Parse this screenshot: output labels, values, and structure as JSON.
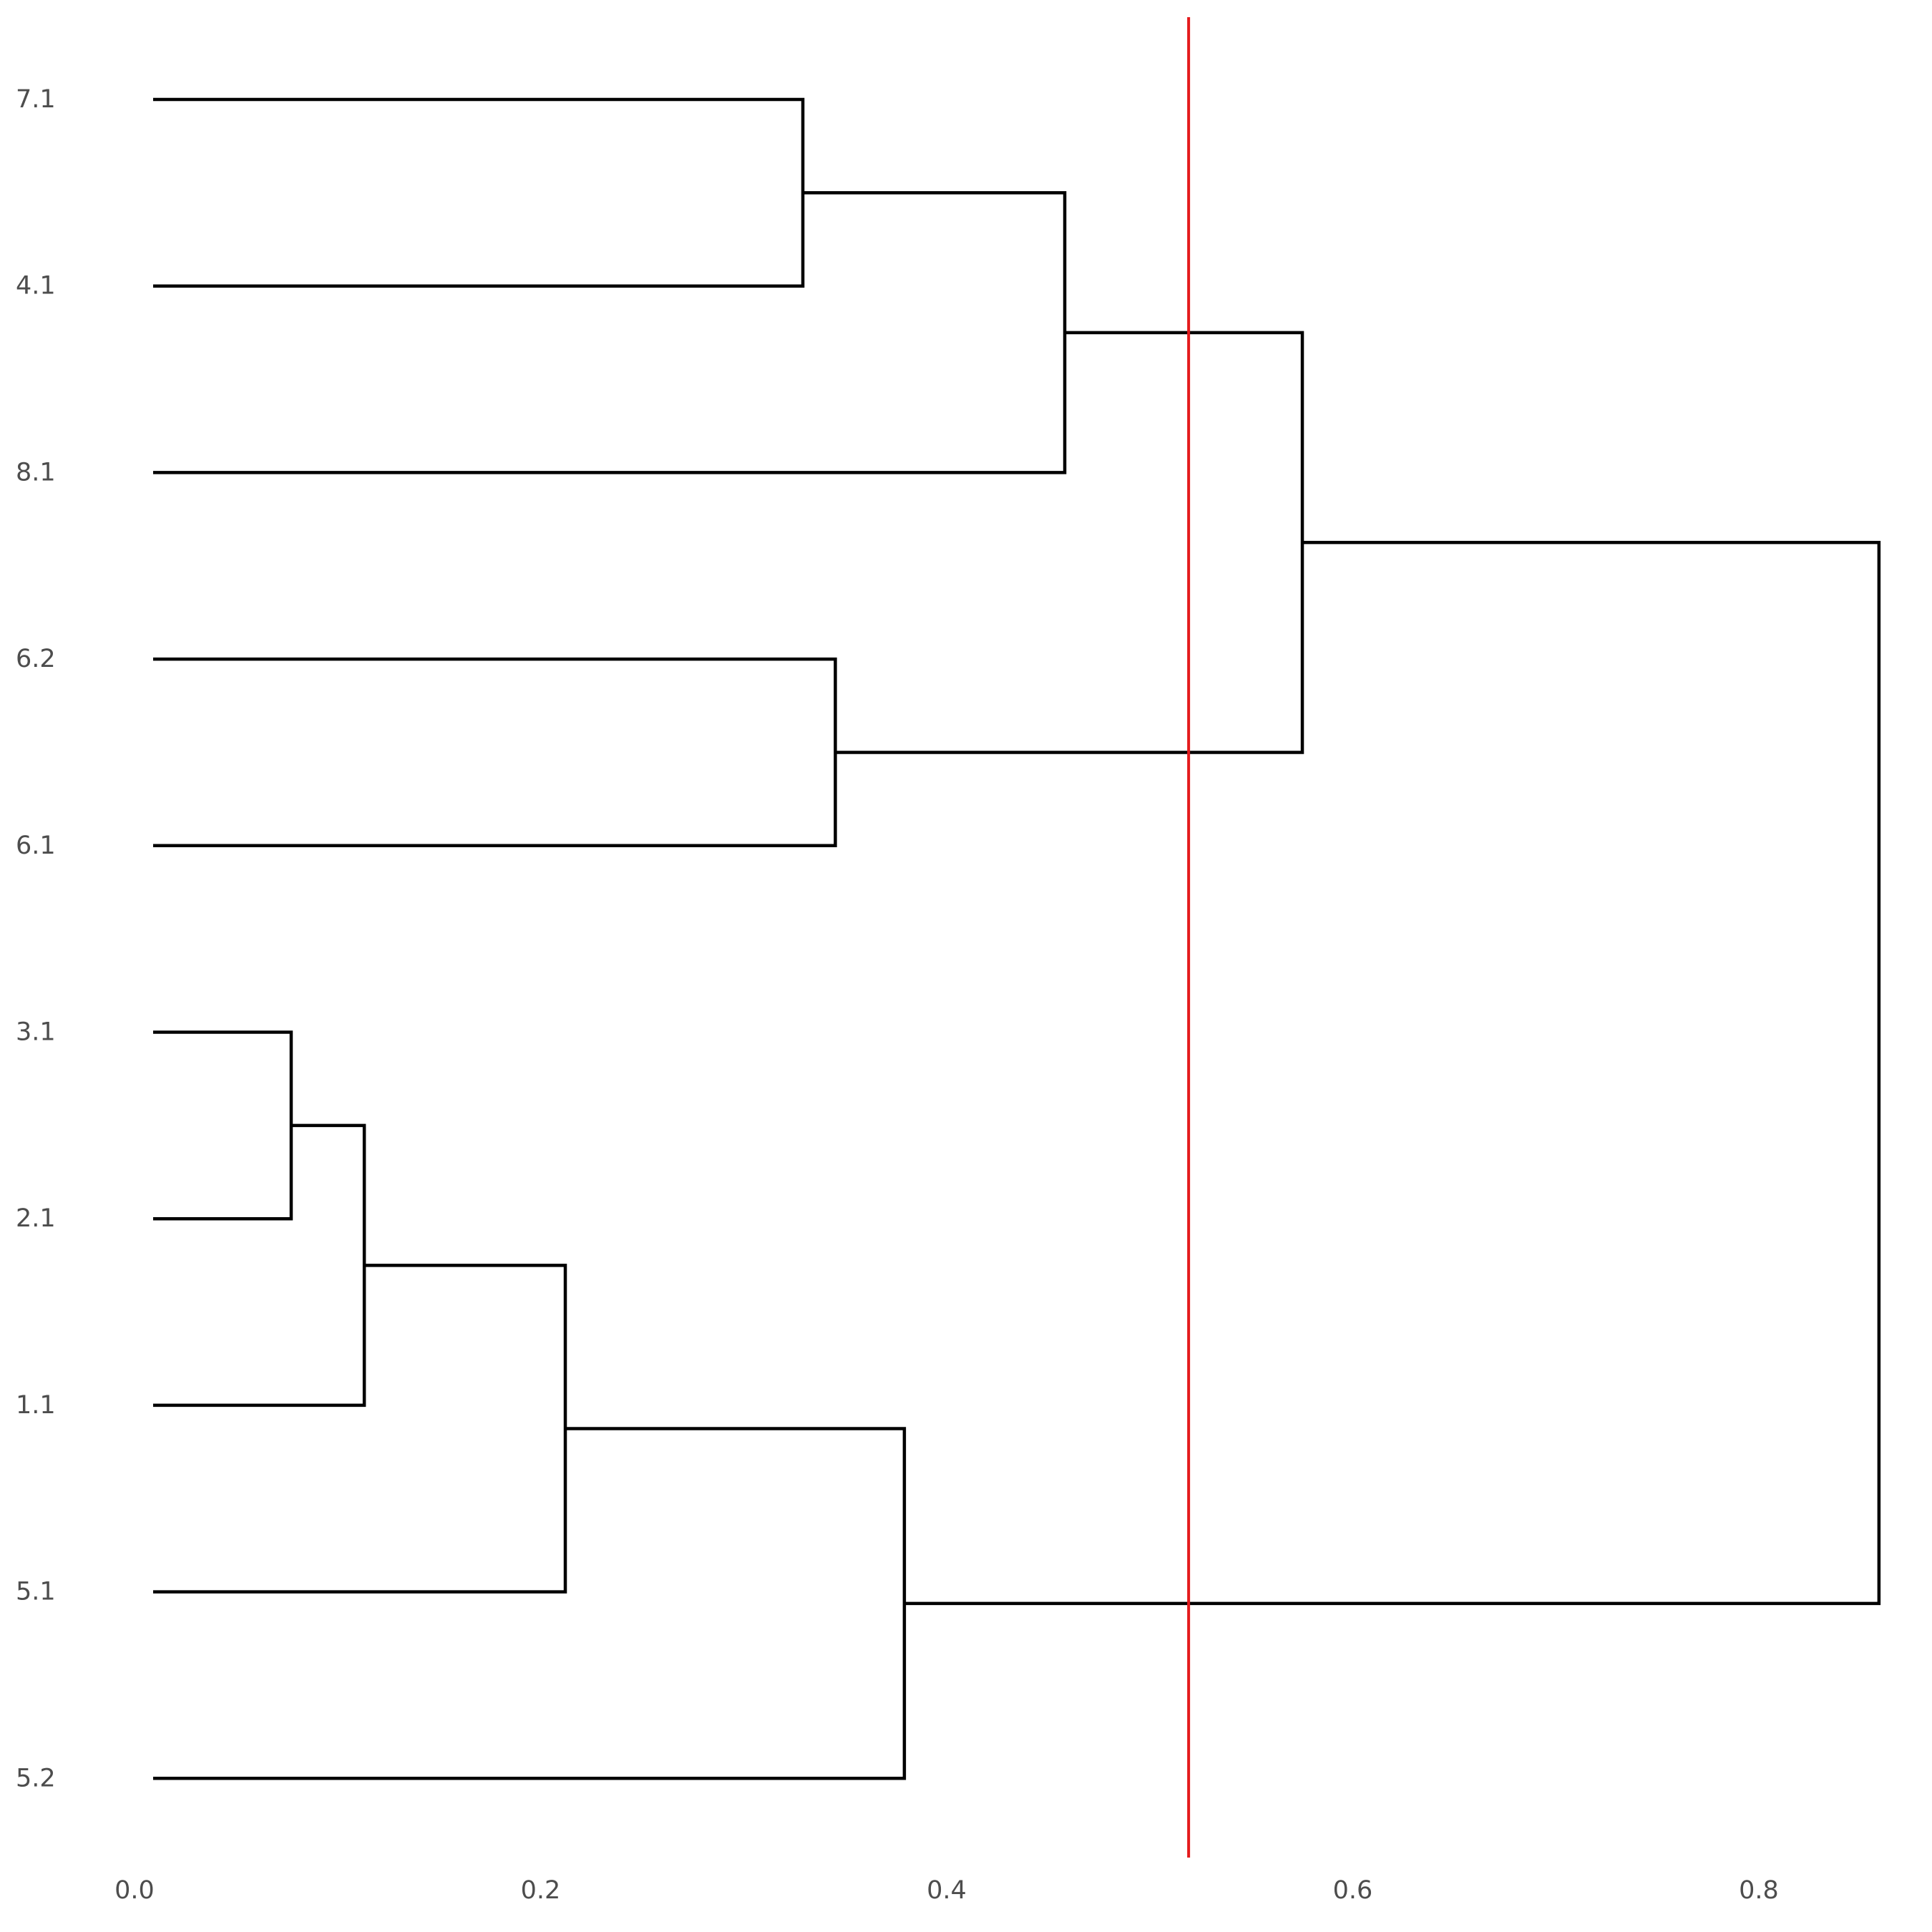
{
  "chart_data": {
    "type": "dendrogram",
    "orientation": "horizontal",
    "leaves": [
      "7.1",
      "4.1",
      "8.1",
      "6.2",
      "6.1",
      "3.1",
      "2.1",
      "1.1",
      "5.1",
      "5.2"
    ],
    "merges": [
      {
        "id": "m1",
        "children": [
          "3.1",
          "2.1"
        ],
        "height": 0.068
      },
      {
        "id": "m2",
        "children": [
          "m1",
          "1.1"
        ],
        "height": 0.104
      },
      {
        "id": "m3",
        "children": [
          "m2",
          "5.1"
        ],
        "height": 0.203
      },
      {
        "id": "m4",
        "children": [
          "7.1",
          "4.1"
        ],
        "height": 0.32
      },
      {
        "id": "m5",
        "children": [
          "6.2",
          "6.1"
        ],
        "height": 0.336
      },
      {
        "id": "m6",
        "children": [
          "m3",
          "5.2"
        ],
        "height": 0.37
      },
      {
        "id": "m7",
        "children": [
          "m4",
          "8.1"
        ],
        "height": 0.449
      },
      {
        "id": "m8",
        "children": [
          "m7",
          "m5"
        ],
        "height": 0.566
      },
      {
        "id": "m9",
        "children": [
          "m8",
          "m6"
        ],
        "height": 0.85
      }
    ],
    "cut_height": 0.51,
    "cut_line_color": "#e41a1c",
    "branch_color": "#000000",
    "x_ticks": [
      "0.0",
      "0.2",
      "0.4",
      "0.6",
      "0.8"
    ],
    "x_tick_values": [
      0.0,
      0.2,
      0.4,
      0.6,
      0.8
    ],
    "xlim": [
      0.0,
      0.85
    ],
    "title": "",
    "xlabel": "",
    "ylabel": "",
    "grid": false,
    "legend": "none"
  }
}
